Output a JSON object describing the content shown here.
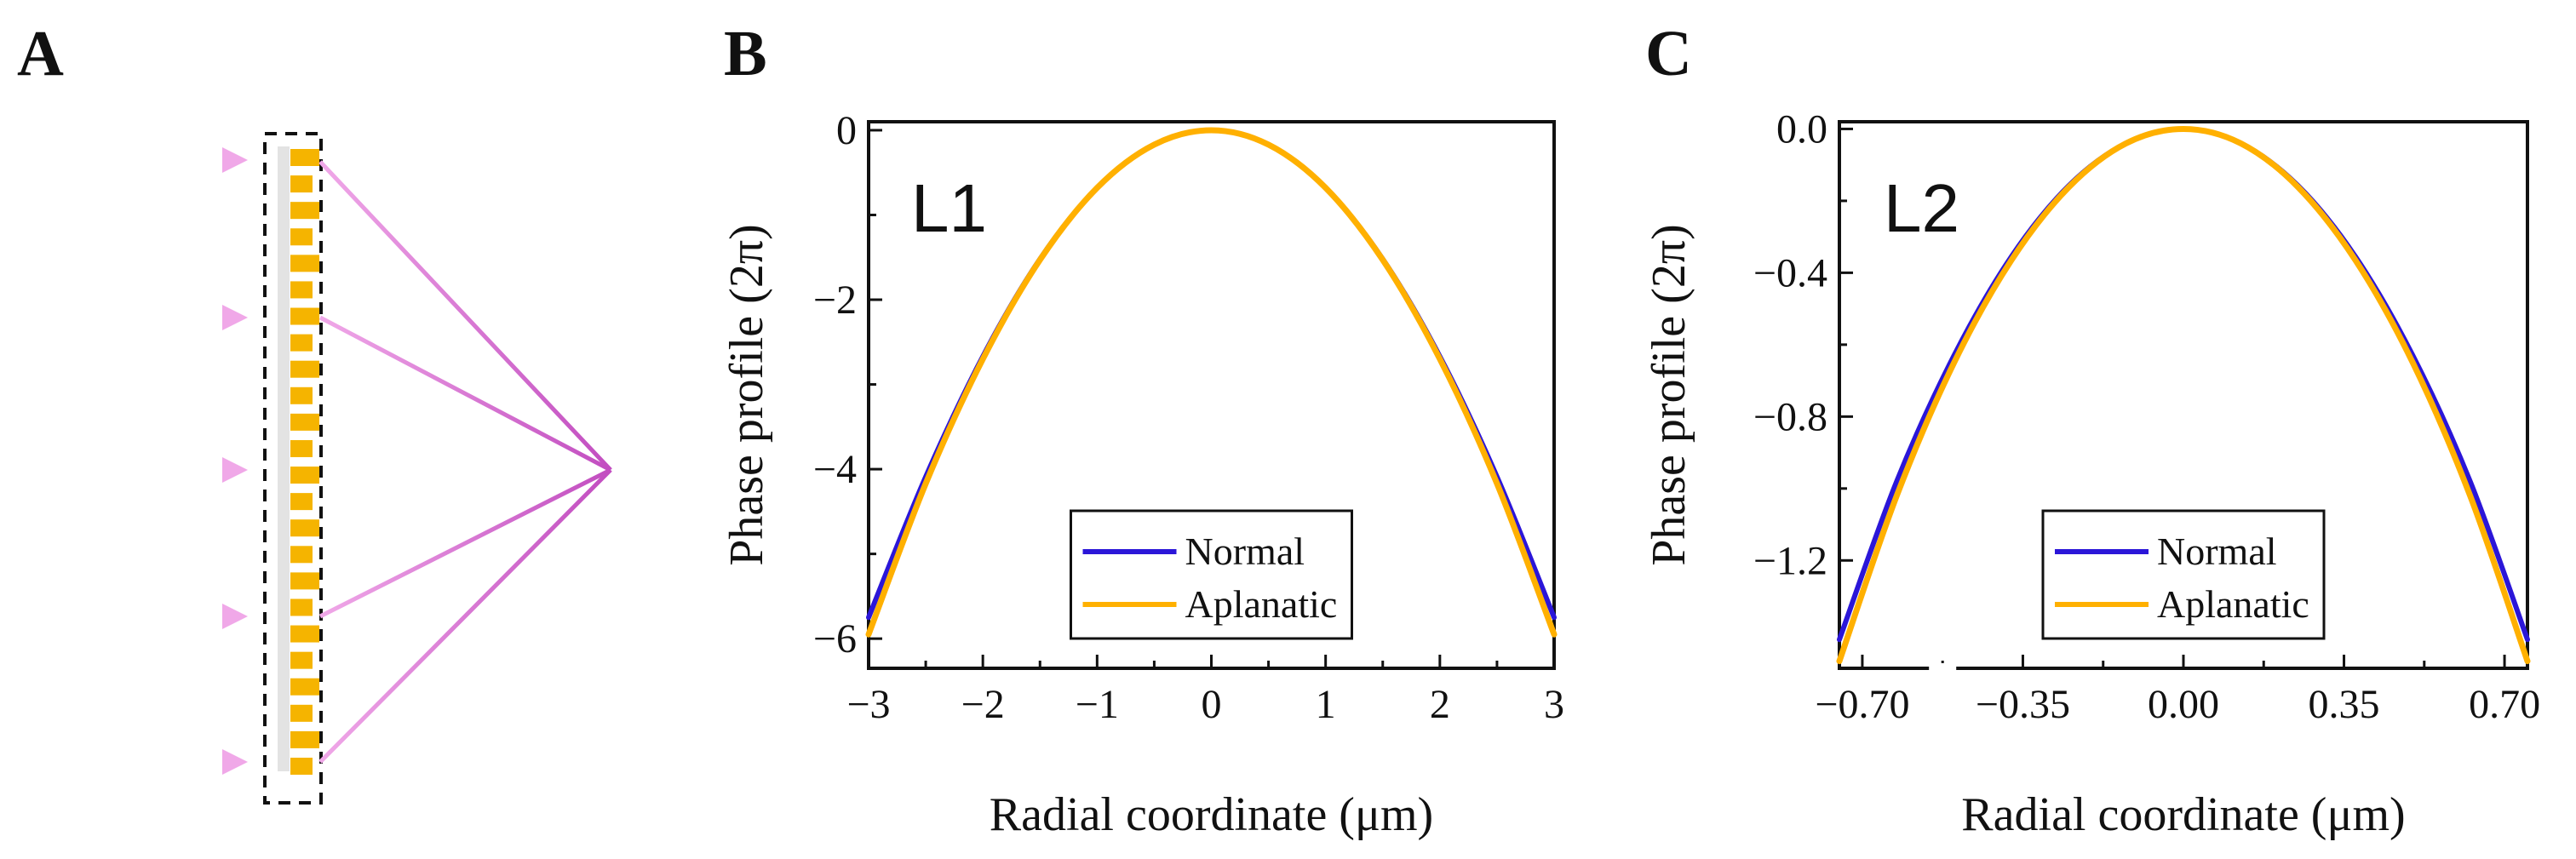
{
  "panels": {
    "a": {
      "letter": "A"
    },
    "b": {
      "letter": "B"
    },
    "c": {
      "letter": "C"
    }
  },
  "colors": {
    "normal": "#2b16d8",
    "aplanatic": "#ffb000",
    "ray_light": "#f0a8e8",
    "ray_dark": "#c24dc0",
    "block": "#f5b400",
    "substrate": "#e3e3e3"
  },
  "chart_data": [
    {
      "id": "B",
      "type": "line",
      "title": "",
      "annotation": "L1",
      "xlabel": "Radial coordinate (μm)",
      "ylabel": "Phase profile (2π)",
      "xlim": [
        -3,
        3
      ],
      "ylim": [
        -6.35,
        0.1
      ],
      "xticks": [
        -3,
        -2,
        -1,
        0,
        1,
        2,
        3
      ],
      "xtick_labels": [
        "−3",
        "−2",
        "−1",
        "0",
        "1",
        "2",
        "3"
      ],
      "yticks": [
        0,
        -2,
        -4,
        -6
      ],
      "ytick_labels": [
        "0",
        "−2",
        "−4",
        "−6"
      ],
      "legend": {
        "position": "bottom-center",
        "entries": [
          "Normal",
          "Aplanatic"
        ]
      },
      "x": [
        -3,
        -2.5,
        -2,
        -1.5,
        -1,
        -0.5,
        0,
        0.5,
        1,
        1.5,
        2,
        2.5,
        3
      ],
      "series": [
        {
          "name": "Normal",
          "values": [
            -5.75,
            -4.09,
            -2.67,
            -1.52,
            -0.68,
            -0.17,
            0,
            -0.17,
            -0.68,
            -1.52,
            -2.67,
            -4.09,
            -5.75
          ]
        },
        {
          "name": "Aplanatic",
          "values": [
            -5.95,
            -4.17,
            -2.7,
            -1.53,
            -0.68,
            -0.17,
            0,
            -0.17,
            -0.68,
            -1.53,
            -2.7,
            -4.17,
            -5.95
          ]
        }
      ]
    },
    {
      "id": "C",
      "type": "line",
      "title": "",
      "annotation": "L2",
      "xlabel": "Radial coordinate (μm)",
      "ylabel": "Phase profile (2π)",
      "xlim": [
        -0.75,
        0.75
      ],
      "ylim": [
        -1.5,
        0.02
      ],
      "xticks": [
        -0.7,
        -0.35,
        0,
        0.35,
        0.7
      ],
      "xtick_labels": [
        "−0.70",
        "−0.35",
        "0.00",
        "0.35",
        "0.70"
      ],
      "yticks": [
        0,
        -0.4,
        -0.8,
        -1.2
      ],
      "ytick_labels": [
        "0.0",
        "−0.4",
        "−0.8",
        "−1.2"
      ],
      "axis_break": "bottom axis, between -0.70 and -0.35",
      "legend": {
        "position": "bottom-center",
        "entries": [
          "Normal",
          "Aplanatic"
        ]
      },
      "x": [
        -0.75,
        -0.625,
        -0.5,
        -0.375,
        -0.25,
        -0.125,
        0,
        0.125,
        0.25,
        0.375,
        0.5,
        0.625,
        0.75
      ],
      "series": [
        {
          "name": "Normal",
          "values": [
            -1.42,
            -0.98,
            -0.63,
            -0.355,
            -0.158,
            -0.04,
            0,
            -0.04,
            -0.158,
            -0.355,
            -0.63,
            -0.98,
            -1.42
          ]
        },
        {
          "name": "Aplanatic",
          "values": [
            -1.48,
            -1.02,
            -0.65,
            -0.365,
            -0.162,
            -0.04,
            0,
            -0.04,
            -0.162,
            -0.365,
            -0.65,
            -1.02,
            -1.48
          ]
        }
      ]
    }
  ]
}
